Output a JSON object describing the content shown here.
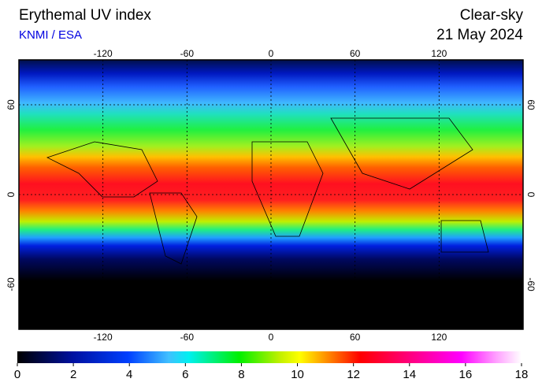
{
  "header": {
    "title": "Erythemal UV index",
    "source": "KNMI / ESA",
    "condition": "Clear-sky",
    "date": "21 May 2024"
  },
  "map": {
    "lonlim": [
      -180,
      180
    ],
    "latlim": [
      -90,
      90
    ],
    "lon_ticks": [
      -120,
      -60,
      0,
      60,
      120
    ],
    "lat_ticks": [
      60,
      0,
      -60
    ]
  },
  "colorbar": {
    "lim": [
      0,
      18
    ],
    "ticks": [
      0,
      2,
      4,
      6,
      8,
      10,
      12,
      14,
      16,
      18
    ]
  }
}
